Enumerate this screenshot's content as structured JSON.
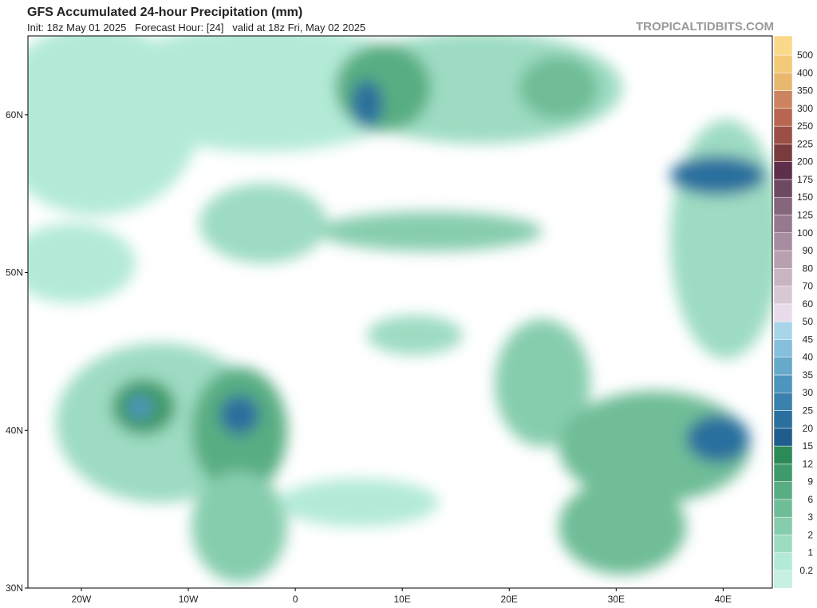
{
  "header": {
    "title": "GFS Accumulated 24-hour Precipitation (mm)",
    "subtitle": "Init: 18z May 01 2025   Forecast Hour: [24]   valid at 18z Fri, May 02 2025",
    "source": "TROPICALTIDBITS.COM"
  },
  "map": {
    "lonlim": [
      -25,
      44.6
    ],
    "latlim": [
      30,
      65
    ],
    "lon_ticks": [
      {
        "value": -20,
        "label": "20W"
      },
      {
        "value": -10,
        "label": "10W"
      },
      0,
      {
        "value": 10,
        "label": "10E"
      },
      {
        "value": 20,
        "label": "20E"
      },
      {
        "value": 30,
        "label": "30E"
      },
      {
        "value": 40,
        "label": "40E"
      }
    ],
    "lat_ticks": [
      {
        "value": 30,
        "label": "30N"
      },
      {
        "value": 40,
        "label": "40N"
      },
      {
        "value": 50,
        "label": "50N"
      },
      {
        "value": 60,
        "label": "60N"
      }
    ]
  },
  "colorbar": {
    "levels": [
      0.2,
      1,
      2,
      3,
      6,
      9,
      12,
      15,
      20,
      25,
      30,
      35,
      40,
      45,
      50,
      60,
      70,
      80,
      90,
      100,
      125,
      150,
      175,
      200,
      225,
      250,
      300,
      350,
      400,
      500
    ],
    "colors": [
      "#b3ead7",
      "#9ddcc2",
      "#86cdad",
      "#6fbd97",
      "#58ad82",
      "#3f9a6b",
      "#2c8a58",
      "#1f5e8c",
      "#2a6f9e",
      "#3a82ad",
      "#4d95bd",
      "#66a9cb",
      "#85bfdb",
      "#a8d5ea",
      "#e8dcea",
      "#d8c8d6",
      "#c9b4c4",
      "#b9a0b1",
      "#a88c9f",
      "#97798d",
      "#86667b",
      "#6e4a62",
      "#5d2f4a",
      "#7a3b3f",
      "#9a4e45",
      "#b8664f",
      "#cc8460",
      "#e8b86e",
      "#f4ca78",
      "#fbd98a"
    ]
  }
}
